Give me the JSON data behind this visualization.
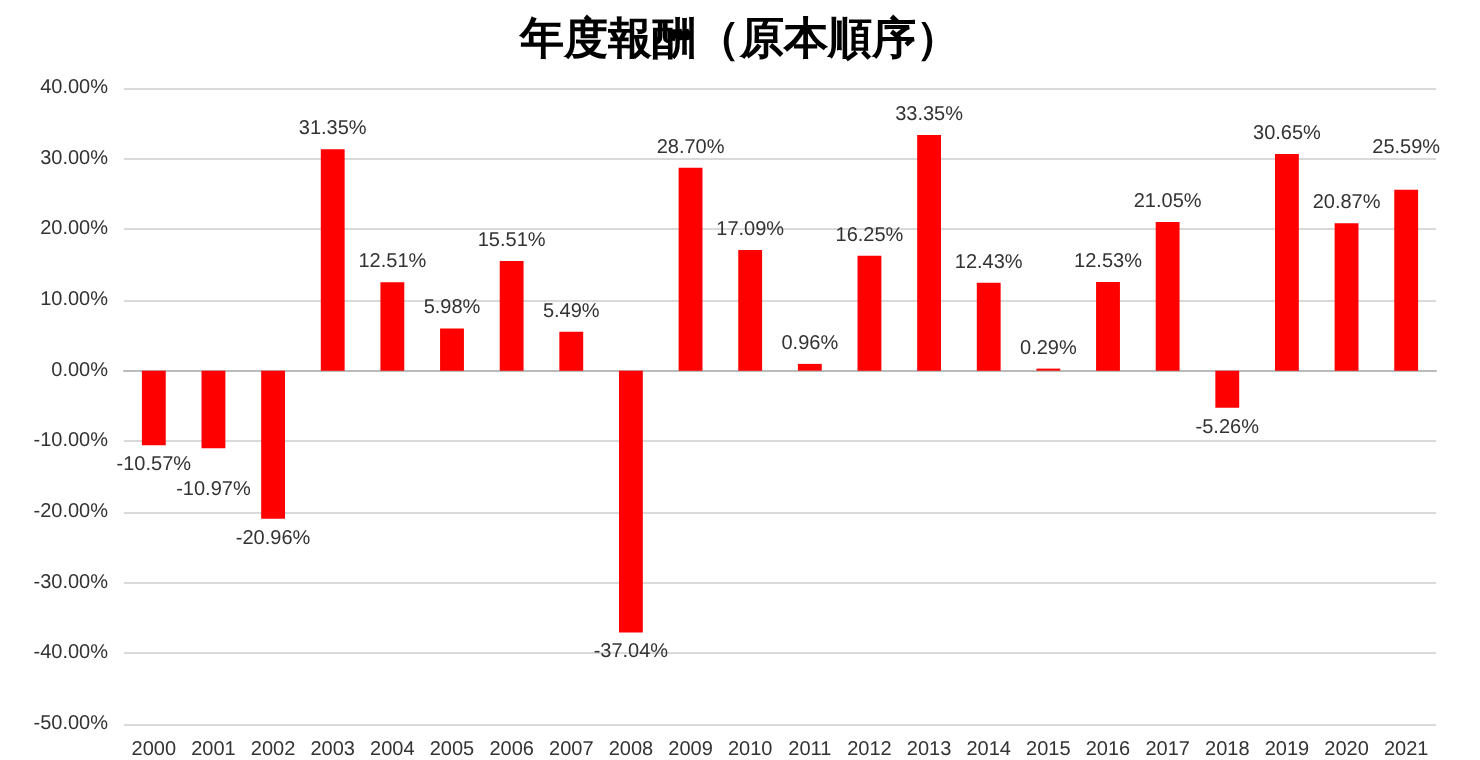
{
  "chart_data": {
    "type": "bar",
    "title": "年度報酬（原本順序）",
    "categories": [
      "2000",
      "2001",
      "2002",
      "2003",
      "2004",
      "2005",
      "2006",
      "2007",
      "2008",
      "2009",
      "2010",
      "2011",
      "2012",
      "2013",
      "2014",
      "2015",
      "2016",
      "2017",
      "2018",
      "2019",
      "2020",
      "2021"
    ],
    "values": [
      -10.57,
      -10.97,
      -20.96,
      31.35,
      12.51,
      5.98,
      15.51,
      5.49,
      -37.04,
      28.7,
      17.09,
      0.96,
      16.25,
      33.35,
      12.43,
      0.29,
      12.53,
      21.05,
      -5.26,
      30.65,
      20.87,
      25.59
    ],
    "value_labels": [
      "-10.57%",
      "-10.97%",
      "-20.96%",
      "31.35%",
      "12.51%",
      "5.98%",
      "15.51%",
      "5.49%",
      "-37.04%",
      "28.70%",
      "17.09%",
      "0.96%",
      "16.25%",
      "33.35%",
      "12.43%",
      "0.29%",
      "12.53%",
      "21.05%",
      "-5.26%",
      "30.65%",
      "20.87%",
      "25.59%"
    ],
    "color": "#ff0000",
    "ylim": [
      -50,
      40
    ],
    "yticks": [
      {
        "value": -50,
        "label": "-50.00%"
      },
      {
        "value": -40,
        "label": "-40.00%"
      },
      {
        "value": -30,
        "label": "-30.00%"
      },
      {
        "value": -20,
        "label": "-20.00%"
      },
      {
        "value": -10,
        "label": "-10.00%"
      },
      {
        "value": 0,
        "label": "0.00%"
      },
      {
        "value": 10,
        "label": "10.00%"
      },
      {
        "value": 20,
        "label": "20.00%"
      },
      {
        "value": 30,
        "label": "30.00%"
      },
      {
        "value": 40,
        "label": "40.00%"
      }
    ],
    "grid": "y"
  }
}
